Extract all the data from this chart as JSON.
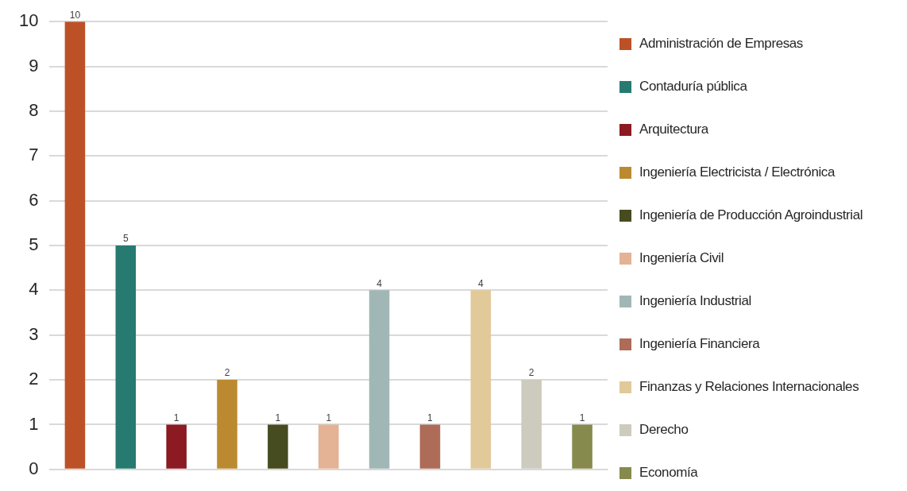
{
  "chart_data": {
    "type": "bar",
    "categories": [
      null,
      null,
      null,
      null,
      null,
      null,
      null,
      null,
      null,
      null,
      null
    ],
    "series": [
      {
        "name": "Administración de Empresas",
        "color": "#bc5127",
        "values": [
          10,
          null,
          null,
          null,
          null,
          null,
          null,
          null,
          null,
          null,
          null
        ]
      },
      {
        "name": "Contaduría pública",
        "color": "#267a70",
        "values": [
          null,
          5,
          null,
          null,
          null,
          null,
          null,
          null,
          null,
          null,
          null
        ]
      },
      {
        "name": "Arquitectura",
        "color": "#8b1a22",
        "values": [
          null,
          null,
          1,
          null,
          null,
          null,
          null,
          null,
          null,
          null,
          null
        ]
      },
      {
        "name": "Ingeniería Electricista / Electrónica",
        "color": "#bb8a30",
        "values": [
          null,
          null,
          null,
          2,
          null,
          null,
          null,
          null,
          null,
          null,
          null
        ]
      },
      {
        "name": "Ingeniería de Producción Agroindustrial",
        "color": "#474b20",
        "values": [
          null,
          null,
          null,
          null,
          1,
          null,
          null,
          null,
          null,
          null,
          null
        ]
      },
      {
        "name": "Ingeniería  Civil",
        "color": "#e4b295",
        "values": [
          null,
          null,
          null,
          null,
          null,
          1,
          null,
          null,
          null,
          null,
          null
        ]
      },
      {
        "name": "Ingeniería Industrial",
        "color": "#a1b7b5",
        "values": [
          null,
          null,
          null,
          null,
          null,
          null,
          4,
          null,
          null,
          null,
          null
        ]
      },
      {
        "name": "Ingeniería  Financiera",
        "color": "#ad6b58",
        "values": [
          null,
          null,
          null,
          null,
          null,
          null,
          null,
          1,
          null,
          null,
          null
        ]
      },
      {
        "name": "Finanzas y Relaciones Internacionales",
        "color": "#e2c99a",
        "values": [
          null,
          null,
          null,
          null,
          null,
          null,
          null,
          null,
          4,
          null,
          null
        ]
      },
      {
        "name": "Derecho",
        "color": "#cdcbbd",
        "values": [
          null,
          null,
          null,
          null,
          null,
          null,
          null,
          null,
          null,
          2,
          null
        ]
      },
      {
        "name": "Economía",
        "color": "#868a4d",
        "values": [
          null,
          null,
          null,
          null,
          null,
          null,
          null,
          null,
          null,
          null,
          1
        ]
      }
    ],
    "ylim": [
      0,
      10
    ],
    "yticks": [
      0,
      1,
      2,
      3,
      4,
      5,
      6,
      7,
      8,
      9,
      10
    ],
    "grid": "y",
    "legend": "right",
    "data_labels": true
  }
}
